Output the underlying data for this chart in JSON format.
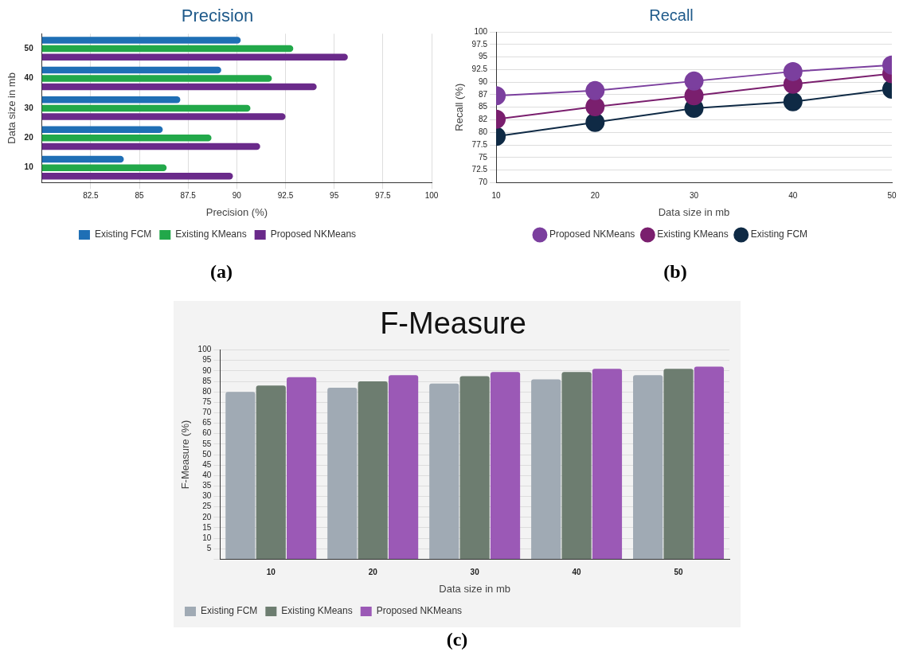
{
  "chart_data": [
    {
      "type": "bar",
      "orientation": "horizontal",
      "title": "Precision",
      "xlabel": "Precision (%)",
      "ylabel": "Data size in mb",
      "categories": [
        "50",
        "40",
        "30",
        "20",
        "10"
      ],
      "series": [
        {
          "name": "Existing FCM",
          "color": "#1f6fb5",
          "values": [
            90.2,
            89.2,
            87.1,
            86.2,
            84.2
          ]
        },
        {
          "name": "Existing KMeans",
          "color": "#22a84a",
          "values": [
            92.9,
            91.8,
            90.7,
            88.7,
            86.4
          ]
        },
        {
          "name": "Proposed NKMeans",
          "color": "#6a2a8a",
          "values": [
            95.7,
            94.1,
            92.5,
            91.2,
            89.8
          ]
        }
      ],
      "xlim": [
        80,
        100
      ],
      "xticks": [
        82.5,
        85,
        87.5,
        90,
        92.5,
        95,
        97.5,
        100
      ],
      "grid": "x",
      "legend": "bottom",
      "annotations": [
        "(a)"
      ]
    },
    {
      "type": "line",
      "title": "Recall",
      "xlabel": "Data size in mb",
      "ylabel": "Recall (%)",
      "x": [
        10,
        20,
        30,
        40,
        50
      ],
      "series": [
        {
          "name": "Proposed NKMeans",
          "color": "#7b3f9e",
          "values": [
            87.3,
            88.3,
            90.2,
            92.1,
            93.4
          ]
        },
        {
          "name": "Existing KMeans",
          "color": "#7a1f6e",
          "values": [
            82.6,
            85.1,
            87.3,
            89.6,
            91.7
          ]
        },
        {
          "name": "Existing FCM",
          "color": "#0f2a45",
          "values": [
            79.2,
            82.0,
            84.8,
            86.1,
            88.6
          ]
        }
      ],
      "xlim": [
        10,
        50
      ],
      "xticks": [
        10,
        20,
        30,
        40,
        50
      ],
      "ylim": [
        70,
        100
      ],
      "yticks": [
        70,
        72.5,
        75,
        77.5,
        80,
        {
          "value": 82.5,
          "label": "82"
        },
        85,
        {
          "value": 87.5,
          "label": "87"
        },
        90,
        92.5,
        95,
        97.5,
        100
      ],
      "grid": "y",
      "marker": "circle",
      "legend": "bottom",
      "annotations": [
        "(b)"
      ]
    },
    {
      "type": "bar",
      "title": "F-Measure",
      "xlabel": "Data size in mb",
      "ylabel": "F-Measure (%)",
      "categories": [
        "10",
        "20",
        "30",
        "40",
        "50"
      ],
      "series": [
        {
          "name": "Existing FCM",
          "color": "#a0aab4",
          "values": [
            80,
            82,
            84,
            86,
            88
          ]
        },
        {
          "name": "Existing KMeans",
          "color": "#6d7d70",
          "values": [
            83,
            85,
            87.5,
            89.5,
            91
          ]
        },
        {
          "name": "Proposed NKMeans",
          "color": "#9b59b6",
          "values": [
            87,
            88,
            89.5,
            91,
            92
          ]
        }
      ],
      "ylim": [
        0,
        100
      ],
      "yticks": [
        {
          "value": 0,
          "label": null
        },
        5,
        10,
        15,
        20,
        25,
        30,
        35,
        40,
        45,
        50,
        55,
        60,
        65,
        70,
        75,
        80,
        85,
        90,
        95,
        100
      ],
      "grid": "y",
      "legend": "bottom left",
      "annotations": [
        "(c)"
      ]
    }
  ]
}
